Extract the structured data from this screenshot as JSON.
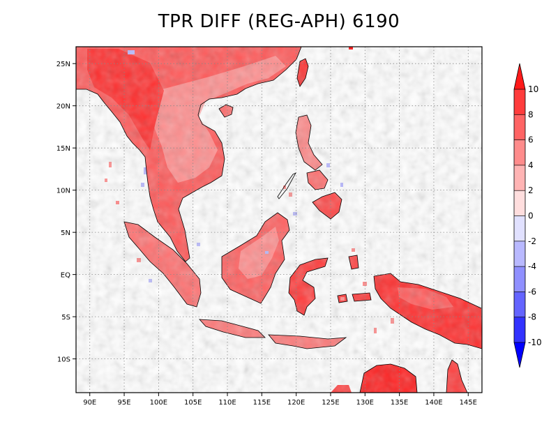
{
  "title": "TPR DIFF (REG-APH) 6190",
  "map": {
    "lon_range": [
      88,
      147
    ],
    "lat_range": [
      -14,
      27
    ],
    "lon_ticks": [
      "90E",
      "95E",
      "100E",
      "105E",
      "110E",
      "115E",
      "120E",
      "125E",
      "130E",
      "135E",
      "140E",
      "145E"
    ],
    "lat_ticks": [
      "25N",
      "20N",
      "15N",
      "10N",
      "5N",
      "EQ",
      "5S",
      "10S"
    ],
    "gridlines": true
  },
  "colorbar": {
    "labels": [
      "10",
      "8",
      "6",
      "4",
      "2",
      "0",
      "-2",
      "-4",
      "-6",
      "-8",
      "-10"
    ],
    "colors": [
      "#ff1a1a",
      "#ff3c3c",
      "#ff6464",
      "#ff8c8c",
      "#ffb4b4",
      "#ffdede",
      "#e1e1ff",
      "#b9b9ff",
      "#9090ff",
      "#6464ff",
      "#3232ff",
      "#0000ff"
    ],
    "top_color": "#ff1a1a",
    "bottom_color": "#0000ff"
  }
}
